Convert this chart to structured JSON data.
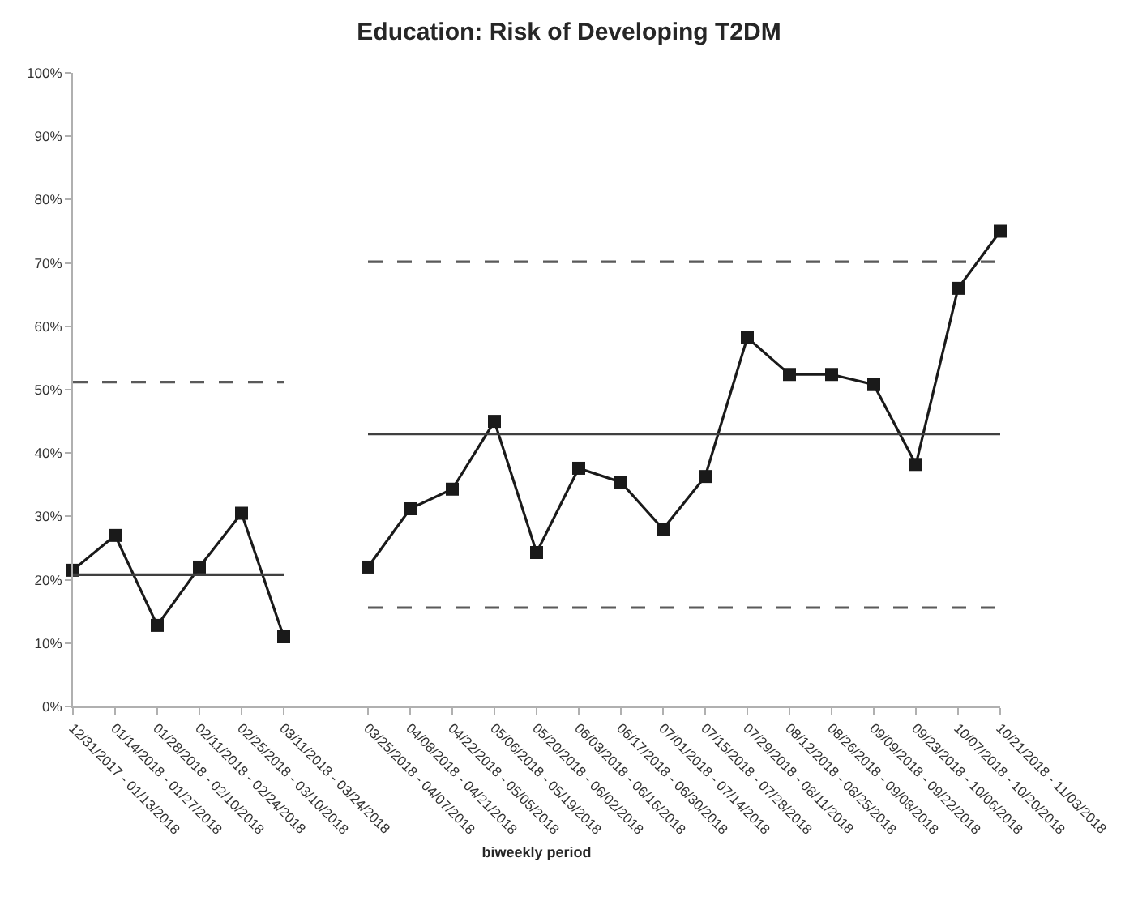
{
  "chart_data": {
    "type": "line",
    "title": "Education: Risk of Developing T2DM",
    "xlabel": "biweekly period",
    "categories": [
      "12/31/2017 - 01/13/2018",
      "01/14/2018 - 01/27/2018",
      "01/28/2018 - 02/10/2018",
      "02/11/2018 - 02/24/2018",
      "02/25/2018 - 03/10/2018",
      "03/11/2018 - 03/24/2018",
      null,
      "03/25/2018 - 04/07/2018",
      "04/08/2018 - 04/21/2018",
      "04/22/2018 - 05/05/2018",
      "05/06/2018 - 05/19/2018",
      "05/20/2018 - 06/02/2018",
      "06/03/2018 - 06/16/2018",
      "06/17/2018 - 06/30/2018",
      "07/01/2018 - 07/14/2018",
      "07/15/2018 - 07/28/2018",
      "07/29/2018 - 08/11/2018",
      "08/12/2018 - 08/25/2018",
      "08/26/2018 - 09/08/2018",
      "09/09/2018 - 09/22/2018",
      "09/23/2018 - 10/06/2018",
      "10/07/2018 - 10/20/2018",
      "10/21/2018 - 11/03/2018"
    ],
    "series": [
      {
        "color": "#1a1a1a",
        "marker": "square",
        "line_style": "solid",
        "values": [
          21.5,
          27,
          12.8,
          22,
          30.5,
          11,
          null,
          22,
          31.2,
          34.3,
          45,
          24.3,
          37.6,
          35.4,
          28,
          36.3,
          58.2,
          52.4,
          52.4,
          50.8,
          38.2,
          66,
          75
        ]
      },
      {
        "color": "#404040",
        "marker": "none",
        "line_style": "solid",
        "values": [
          20.8,
          20.8,
          20.8,
          20.8,
          20.8,
          20.8,
          null,
          43,
          43,
          43,
          43,
          43,
          43,
          43,
          43,
          43,
          43,
          43,
          43,
          43,
          43,
          43,
          43
        ]
      },
      {
        "color": "#5a5a5a",
        "marker": "none",
        "line_style": "dashed",
        "values": [
          51.2,
          51.2,
          51.2,
          51.2,
          51.2,
          51.2,
          null,
          70.2,
          70.2,
          70.2,
          70.2,
          70.2,
          70.2,
          70.2,
          70.2,
          70.2,
          70.2,
          70.2,
          70.2,
          70.2,
          70.2,
          70.2,
          70.2
        ]
      },
      {
        "color": "#5a5a5a",
        "marker": "none",
        "line_style": "dashed",
        "values": [
          null,
          null,
          null,
          null,
          null,
          null,
          null,
          15.6,
          15.6,
          15.6,
          15.6,
          15.6,
          15.6,
          15.6,
          15.6,
          15.6,
          15.6,
          15.6,
          15.6,
          15.6,
          15.6,
          15.6,
          15.6
        ]
      }
    ],
    "ylim": [
      0,
      100
    ],
    "yticks": [
      {
        "value": 0,
        "label": "0%"
      },
      {
        "value": 10,
        "label": "10%"
      },
      {
        "value": 20,
        "label": "20%"
      },
      {
        "value": 30,
        "label": "30%"
      },
      {
        "value": 40,
        "label": "40%"
      },
      {
        "value": 50,
        "label": "50%"
      },
      {
        "value": 60,
        "label": "60%"
      },
      {
        "value": 70,
        "label": "70%"
      },
      {
        "value": 80,
        "label": "80%"
      },
      {
        "value": 90,
        "label": "90%"
      },
      {
        "value": 100,
        "label": "100%"
      }
    ]
  }
}
